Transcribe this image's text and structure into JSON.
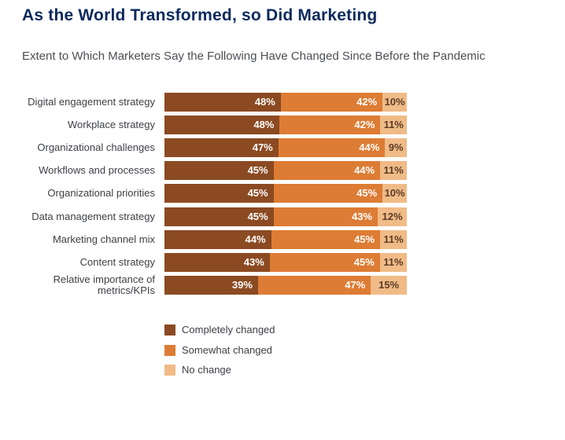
{
  "title": "As the World Transformed, so Did Marketing",
  "subtitle": "Extent to Which Marketers Say the Following Have Changed Since Before the Pandemic",
  "colors": {
    "completely": "#8b4a22",
    "somewhat": "#dd7c34",
    "none": "#f0bb87",
    "title": "#0b2a5c"
  },
  "chart_data": {
    "type": "bar",
    "orientation": "horizontal",
    "stacked": true,
    "categories": [
      "Digital engagement strategy",
      "Workplace strategy",
      "Organizational challenges",
      "Workflows and processes",
      "Organizational priorities",
      "Data management strategy",
      "Marketing channel mix",
      "Content strategy",
      "Relative importance of metrics/KPIs"
    ],
    "series": [
      {
        "name": "Completely changed",
        "values": [
          48,
          48,
          47,
          45,
          45,
          45,
          44,
          43,
          39
        ]
      },
      {
        "name": "Somewhat changed",
        "values": [
          42,
          42,
          44,
          44,
          45,
          43,
          45,
          45,
          47
        ]
      },
      {
        "name": "No change",
        "values": [
          10,
          11,
          9,
          11,
          10,
          12,
          11,
          11,
          15
        ]
      }
    ],
    "value_suffix": "%",
    "legend_position": "bottom-left",
    "grid": false
  }
}
